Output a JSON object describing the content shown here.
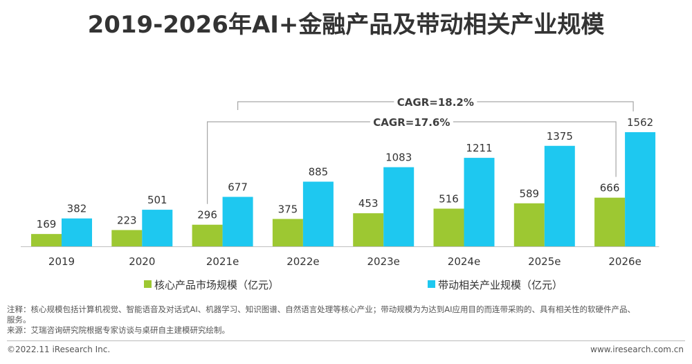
{
  "title": "2019-2026年AI+金融产品及带动相关产业规模",
  "chart_data": {
    "type": "bar",
    "categories": [
      "2019",
      "2020",
      "2021e",
      "2022e",
      "2023e",
      "2024e",
      "2025e",
      "2026e"
    ],
    "series": [
      {
        "name": "核心产品市场规模（亿元）",
        "color": "#9dc832",
        "values": [
          169,
          223,
          296,
          375,
          453,
          516,
          589,
          666
        ]
      },
      {
        "name": "带动相关产业规模（亿元）",
        "color": "#1ec8f0",
        "values": [
          382,
          501,
          677,
          885,
          1083,
          1211,
          1375,
          1562
        ]
      }
    ],
    "ylim": [
      0,
      1562
    ],
    "annotations": [
      {
        "text": "CAGR=18.2%",
        "from": "2021e",
        "to": "2026e",
        "series": "带动相关产业规模（亿元）"
      },
      {
        "text": "CAGR=17.6%",
        "from": "2021e",
        "to": "2026e",
        "series": "核心产品市场规模（亿元）"
      }
    ],
    "legend_position": "bottom"
  },
  "notes": {
    "line1": "注释：核心规模包括计算机视觉、智能语音及对话式AI、机器学习、知识图谱、自然语言处理等核心产业；带动规模为为达到AI应用目的而连带采购的、具有相关性的软硬件产品、",
    "line2": "服务。",
    "line3": "来源：艾瑞咨询研究院根据专家访谈与桌研自主建模研究绘制。"
  },
  "footer": {
    "copyright": "©2022.11 iResearch Inc.",
    "website": "www.iresearch.com.cn"
  }
}
